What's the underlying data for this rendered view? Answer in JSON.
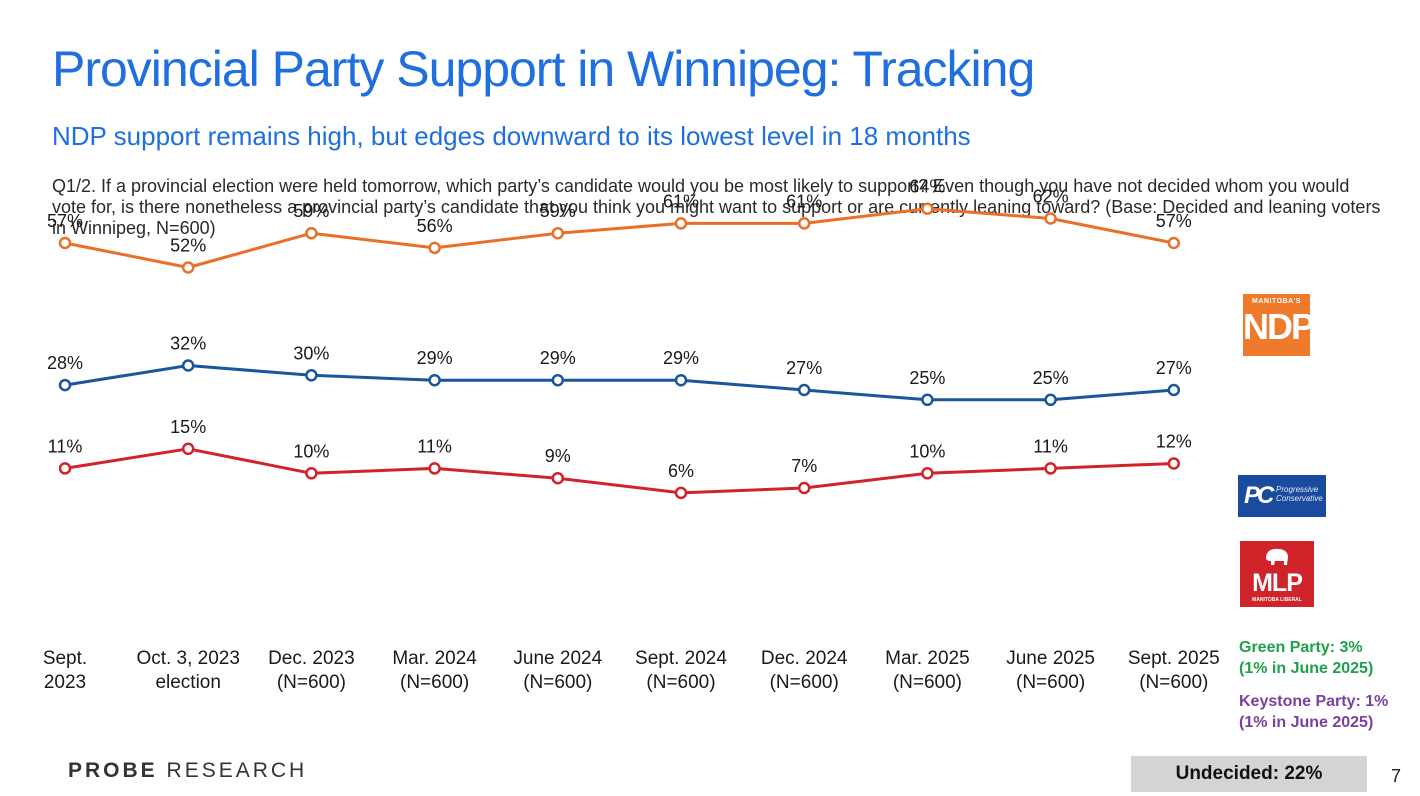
{
  "title": "Provincial Party Support in Winnipeg: Tracking",
  "subtitle": "NDP support remains high, but edges downward to its lowest level in 18 months",
  "question": "Q1/2. If a provincial election were held tomorrow, which party’s candidate would you be most likely to support? Even though you have not decided whom you would vote for, is there nonetheless a provincial party’s candidate that you think you might want to support or are currently leaning toward? (Base: Decided and leaning voters in Winnipeg, N=600)",
  "chart_data": {
    "type": "line",
    "categories": [
      [
        "Sept.",
        "2023"
      ],
      [
        "Oct. 3, 2023",
        "election"
      ],
      [
        "Dec. 2023",
        "(N=600)"
      ],
      [
        "Mar. 2024",
        "(N=600)"
      ],
      [
        "June 2024",
        "(N=600)"
      ],
      [
        "Sept. 2024",
        "(N=600)"
      ],
      [
        "Dec. 2024",
        "(N=600)"
      ],
      [
        "Mar. 2025",
        "(N=600)"
      ],
      [
        "June 2025",
        "(N=600)"
      ],
      [
        "Sept. 2025",
        "(N=600)"
      ]
    ],
    "series": [
      {
        "name": "NDP",
        "color": "#e8702a",
        "values": [
          57,
          52,
          59,
          56,
          59,
          61,
          61,
          64,
          62,
          57
        ]
      },
      {
        "name": "PC",
        "color": "#1a569c",
        "values": [
          28,
          32,
          30,
          29,
          29,
          29,
          27,
          25,
          25,
          27
        ]
      },
      {
        "name": "Liberal",
        "color": "#d2232a",
        "values": [
          11,
          15,
          10,
          11,
          9,
          6,
          7,
          10,
          11,
          12
        ]
      }
    ],
    "value_suffix": "%",
    "ylabel": "",
    "xlabel": "",
    "grid": false
  },
  "logos": {
    "ndp_small": "MANITOBA'S",
    "ndp_big": "NDP",
    "pc_mark": "PC",
    "pc_line1": "Progressive",
    "pc_line2": "Conservative",
    "mlp_big": "MLP",
    "mlp_small": "MANITOBA LIBERAL"
  },
  "notes": {
    "green_line1": "Green Party: 3%",
    "green_line2": "(1% in June 2025)",
    "purple_line1": "Keystone Party: 1%",
    "purple_line2": "(1% in June 2025)"
  },
  "footer": {
    "brand_bold": "PROBE",
    "brand_rest": "RESEARCH",
    "undecided": "Undecided: 22%",
    "page_number": "7"
  },
  "colors": {
    "title": "#1f6fe0",
    "green_note": "#20a04a",
    "purple_note": "#7b3fa0"
  }
}
